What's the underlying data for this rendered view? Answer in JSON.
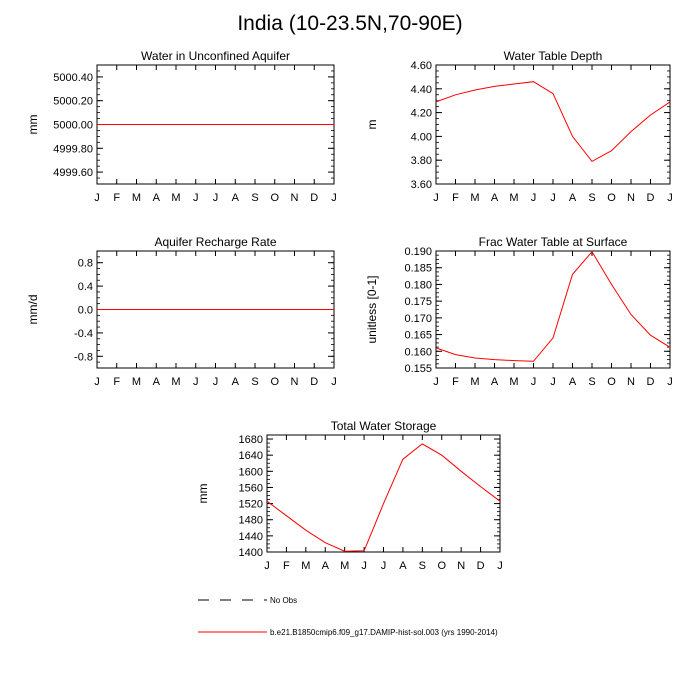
{
  "page_title": "India (10-23.5N,70-90E)",
  "chart_data": [
    {
      "type": "line",
      "title": "Water in Unconfined Aquifer",
      "ylabel": "mm",
      "xlabel": "",
      "categories": [
        "J",
        "F",
        "M",
        "A",
        "M",
        "J",
        "J",
        "A",
        "S",
        "O",
        "N",
        "D",
        "J"
      ],
      "ylim": [
        4999.5,
        5000.5
      ],
      "yticks": [
        "5000.40",
        "5000.20",
        "5000.00",
        "4999.80",
        "4999.60"
      ],
      "ytick_values": [
        5000.4,
        5000.2,
        5000.0,
        4999.8,
        4999.6
      ],
      "series": [
        {
          "color": "#ff0000",
          "values": [
            5000,
            5000,
            5000,
            5000,
            5000,
            5000,
            5000,
            5000,
            5000,
            5000,
            5000,
            5000,
            5000
          ]
        }
      ]
    },
    {
      "type": "line",
      "title": "Water Table Depth",
      "ylabel": "m",
      "xlabel": "",
      "categories": [
        "J",
        "F",
        "M",
        "A",
        "M",
        "J",
        "J",
        "A",
        "S",
        "O",
        "N",
        "D",
        "J"
      ],
      "ylim": [
        3.6,
        4.6
      ],
      "yticks": [
        "4.60",
        "4.40",
        "4.20",
        "4.00",
        "3.80",
        "3.60"
      ],
      "ytick_values": [
        4.6,
        4.4,
        4.2,
        4.0,
        3.8,
        3.6
      ],
      "series": [
        {
          "color": "#ff0000",
          "values": [
            4.29,
            4.35,
            4.39,
            4.42,
            4.44,
            4.46,
            4.36,
            4.0,
            3.79,
            3.88,
            4.04,
            4.18,
            4.29
          ]
        }
      ]
    },
    {
      "type": "line",
      "title": "Aquifer Recharge Rate",
      "ylabel": "mm/d",
      "xlabel": "",
      "categories": [
        "J",
        "F",
        "M",
        "A",
        "M",
        "J",
        "J",
        "A",
        "S",
        "O",
        "N",
        "D",
        "J"
      ],
      "ylim": [
        -1.0,
        1.0
      ],
      "yticks": [
        "0.8",
        "0.4",
        "0.0",
        "-0.4",
        "-0.8"
      ],
      "ytick_values": [
        0.8,
        0.4,
        0.0,
        -0.4,
        -0.8
      ],
      "series": [
        {
          "color": "#ff0000",
          "values": [
            0,
            0,
            0,
            0,
            0,
            0,
            0,
            0,
            0,
            0,
            0,
            0,
            0
          ]
        }
      ]
    },
    {
      "type": "line",
      "title": "Frac Water Table at Surface",
      "ylabel": "unitless [0-1]",
      "xlabel": "",
      "categories": [
        "J",
        "F",
        "M",
        "A",
        "M",
        "J",
        "J",
        "A",
        "S",
        "O",
        "N",
        "D",
        "J"
      ],
      "ylim": [
        0.155,
        0.19
      ],
      "yticks": [
        "0.190",
        "0.185",
        "0.180",
        "0.175",
        "0.170",
        "0.165",
        "0.160",
        "0.155"
      ],
      "ytick_values": [
        0.19,
        0.185,
        0.18,
        0.175,
        0.17,
        0.165,
        0.16,
        0.155
      ],
      "series": [
        {
          "color": "#ff0000",
          "values": [
            0.161,
            0.159,
            0.158,
            0.1575,
            0.1572,
            0.157,
            0.164,
            0.183,
            0.1898,
            0.18,
            0.171,
            0.1648,
            0.1612
          ]
        }
      ]
    },
    {
      "type": "line",
      "title": "Total Water Storage",
      "ylabel": "mm",
      "xlabel": "",
      "categories": [
        "J",
        "F",
        "M",
        "A",
        "M",
        "J",
        "J",
        "A",
        "S",
        "O",
        "N",
        "D",
        "J"
      ],
      "ylim": [
        1400,
        1690
      ],
      "yticks": [
        "1680",
        "1640",
        "1600",
        "1560",
        "1520",
        "1480",
        "1440",
        "1400"
      ],
      "ytick_values": [
        1680,
        1640,
        1600,
        1560,
        1520,
        1480,
        1440,
        1400
      ],
      "series": [
        {
          "color": "#ff0000",
          "values": [
            1526,
            1490,
            1454,
            1423,
            1402,
            1403,
            1520,
            1630,
            1668,
            1640,
            1600,
            1562,
            1526
          ]
        }
      ]
    }
  ],
  "legend": [
    {
      "label": "No Obs",
      "style": "dashed",
      "color": "#000000"
    },
    {
      "label": "b.e21.B1850cmip6.f09_g17.DAMIP-hist-sol.003 (yrs 1990-2014)",
      "style": "solid",
      "color": "#ff0000"
    }
  ]
}
